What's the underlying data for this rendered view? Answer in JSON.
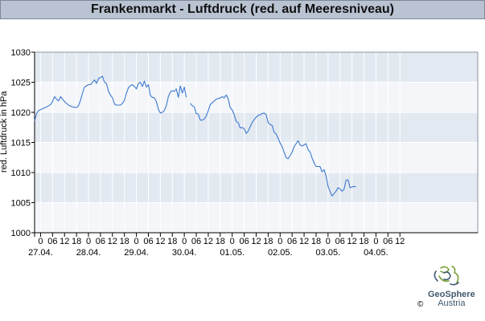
{
  "header": {
    "title": "Frankenmarkt - Luftdruck (red. auf Meeresniveau)"
  },
  "branding": {
    "logo_name": "GeoSphere",
    "logo_sub": "Austria",
    "copyright": "©"
  },
  "colors": {
    "band_dark": "#e3e9f1",
    "band_light": "#f4f6fa",
    "grid": "#ffffff",
    "line": "#3c78cf",
    "axis": "#000000"
  },
  "chart_data": {
    "type": "line",
    "title": "Frankenmarkt - Luftdruck (red. auf Meeresniveau)",
    "ylabel": "red. Luftdruck in hPa",
    "xlabel": "",
    "ylim": [
      1000,
      1030
    ],
    "yticks": [
      1000,
      1005,
      1010,
      1015,
      1020,
      1025,
      1030
    ],
    "xlim_hours": [
      0,
      222
    ],
    "hour_labels": [
      "0",
      "06",
      "12",
      "18",
      "0",
      "06",
      "12",
      "18",
      "0",
      "06",
      "12",
      "18",
      "0",
      "06",
      "12",
      "18",
      "0",
      "06",
      "12",
      "18",
      "0",
      "06",
      "12",
      "18",
      "0",
      "06",
      "12",
      "18",
      "0",
      "06",
      "12"
    ],
    "hour_positions": [
      3,
      9,
      15,
      21,
      27,
      33,
      39,
      45,
      51,
      57,
      63,
      69,
      75,
      81,
      87,
      93,
      99,
      105,
      111,
      117,
      123,
      129,
      135,
      141,
      147,
      153,
      159,
      165,
      171,
      177,
      183
    ],
    "date_labels": [
      "27.04.",
      "28.04.",
      "29.04.",
      "30.04.",
      "01.05.",
      "02.05.",
      "03.05.",
      "04.05."
    ],
    "date_hours": [
      3,
      27,
      51,
      75,
      99,
      123,
      147,
      171
    ],
    "grid": true,
    "series": [
      {
        "segments": [
          [
            [
              0,
              1018.6
            ],
            [
              1,
              1019.8
            ],
            [
              2,
              1020.3
            ],
            [
              4,
              1020.6
            ],
            [
              6,
              1020.9
            ],
            [
              8,
              1021.3
            ],
            [
              9,
              1021.8
            ],
            [
              10,
              1022.6
            ],
            [
              11,
              1022.2
            ],
            [
              12,
              1021.9
            ],
            [
              13,
              1022.6
            ],
            [
              14,
              1022.2
            ],
            [
              15,
              1021.8
            ],
            [
              17,
              1021.2
            ],
            [
              19,
              1020.9
            ],
            [
              21,
              1020.8
            ],
            [
              22,
              1021.1
            ],
            [
              23,
              1022.0
            ],
            [
              24,
              1023.2
            ],
            [
              25,
              1024.2
            ],
            [
              27,
              1024.6
            ],
            [
              28,
              1024.6
            ],
            [
              29,
              1025.0
            ],
            [
              30,
              1025.4
            ],
            [
              31,
              1024.8
            ],
            [
              32,
              1025.6
            ],
            [
              33,
              1025.8
            ],
            [
              34,
              1026.0
            ],
            [
              35,
              1025.0
            ],
            [
              36,
              1024.8
            ],
            [
              37,
              1023.5
            ],
            [
              38,
              1022.9
            ],
            [
              39,
              1022.4
            ],
            [
              40,
              1021.4
            ],
            [
              41,
              1021.2
            ],
            [
              43,
              1021.2
            ],
            [
              44,
              1021.5
            ],
            [
              45,
              1022.0
            ],
            [
              46,
              1023.2
            ],
            [
              47,
              1024.1
            ],
            [
              48,
              1024.4
            ],
            [
              49,
              1024.6
            ],
            [
              50,
              1024.3
            ],
            [
              51,
              1023.9
            ],
            [
              52,
              1024.8
            ],
            [
              53,
              1025.0
            ],
            [
              54,
              1024.3
            ],
            [
              55,
              1025.2
            ],
            [
              56,
              1024.2
            ],
            [
              57,
              1024.6
            ],
            [
              58,
              1022.8
            ],
            [
              59,
              1022.5
            ],
            [
              60,
              1022.4
            ],
            [
              61,
              1021.8
            ],
            [
              62,
              1020.5
            ],
            [
              63,
              1019.9
            ],
            [
              64,
              1020.0
            ],
            [
              65,
              1020.3
            ],
            [
              66,
              1021.1
            ],
            [
              67,
              1022.6
            ],
            [
              68,
              1023.4
            ],
            [
              69,
              1023.6
            ],
            [
              70,
              1023.5
            ],
            [
              71,
              1023.9
            ],
            [
              72,
              1022.5
            ],
            [
              73,
              1024.4
            ],
            [
              74,
              1023.2
            ],
            [
              75,
              1024.2
            ],
            [
              76,
              1022.5
            ]
          ],
          [
            [
              78,
              1021.5
            ],
            [
              79,
              1021.1
            ],
            [
              80,
              1020.9
            ],
            [
              81,
              1019.8
            ],
            [
              82,
              1019.7
            ],
            [
              83,
              1018.7
            ],
            [
              84,
              1018.7
            ],
            [
              85,
              1018.9
            ],
            [
              86,
              1019.4
            ],
            [
              87,
              1020.3
            ],
            [
              88,
              1021.3
            ],
            [
              89,
              1021.6
            ],
            [
              90,
              1021.9
            ],
            [
              91,
              1022.2
            ],
            [
              92,
              1022.3
            ],
            [
              93,
              1022.4
            ],
            [
              94,
              1022.6
            ],
            [
              95,
              1022.4
            ],
            [
              96,
              1022.9
            ],
            [
              97,
              1022.2
            ],
            [
              98,
              1020.8
            ],
            [
              99,
              1020.4
            ],
            [
              100,
              1019.6
            ],
            [
              101,
              1018.5
            ],
            [
              102,
              1018.3
            ],
            [
              103,
              1017.4
            ],
            [
              104,
              1017.5
            ],
            [
              105,
              1017.3
            ],
            [
              106,
              1016.5
            ],
            [
              107,
              1016.9
            ],
            [
              108,
              1017.6
            ],
            [
              109,
              1018.3
            ],
            [
              110,
              1018.8
            ],
            [
              111,
              1019.2
            ],
            [
              112,
              1019.5
            ],
            [
              113,
              1019.6
            ],
            [
              114,
              1019.8
            ],
            [
              115,
              1019.9
            ],
            [
              116,
              1019.6
            ],
            [
              117,
              1018.3
            ],
            [
              118,
              1018.0
            ],
            [
              119,
              1017.8
            ],
            [
              120,
              1016.7
            ],
            [
              121,
              1016.4
            ],
            [
              122,
              1015.7
            ],
            [
              123,
              1014.9
            ],
            [
              124,
              1014.3
            ],
            [
              125,
              1013.4
            ],
            [
              126,
              1012.5
            ],
            [
              127,
              1012.3
            ],
            [
              128,
              1012.8
            ],
            [
              129,
              1013.4
            ],
            [
              130,
              1014.3
            ],
            [
              131,
              1014.8
            ],
            [
              132,
              1015.3
            ],
            [
              133,
              1014.6
            ],
            [
              134,
              1014.4
            ],
            [
              135,
              1014.6
            ],
            [
              136,
              1014.8
            ],
            [
              137,
              1013.8
            ],
            [
              138,
              1013.4
            ],
            [
              139,
              1012.4
            ],
            [
              140,
              1011.6
            ],
            [
              141,
              1011.0
            ],
            [
              142,
              1011.0
            ],
            [
              143,
              1011.0
            ],
            [
              144,
              1010.1
            ],
            [
              145,
              1010.5
            ],
            [
              146,
              1009.4
            ],
            [
              147,
              1007.7
            ],
            [
              148,
              1006.9
            ],
            [
              149,
              1006.1
            ],
            [
              150,
              1006.5
            ],
            [
              151,
              1006.9
            ],
            [
              152,
              1007.5
            ],
            [
              153,
              1007.3
            ],
            [
              154,
              1006.9
            ],
            [
              155,
              1007.2
            ],
            [
              156,
              1008.7
            ],
            [
              157,
              1008.8
            ],
            [
              158,
              1007.5
            ],
            [
              159,
              1007.6
            ],
            [
              160,
              1007.7
            ],
            [
              161,
              1007.6
            ]
          ]
        ]
      }
    ]
  }
}
